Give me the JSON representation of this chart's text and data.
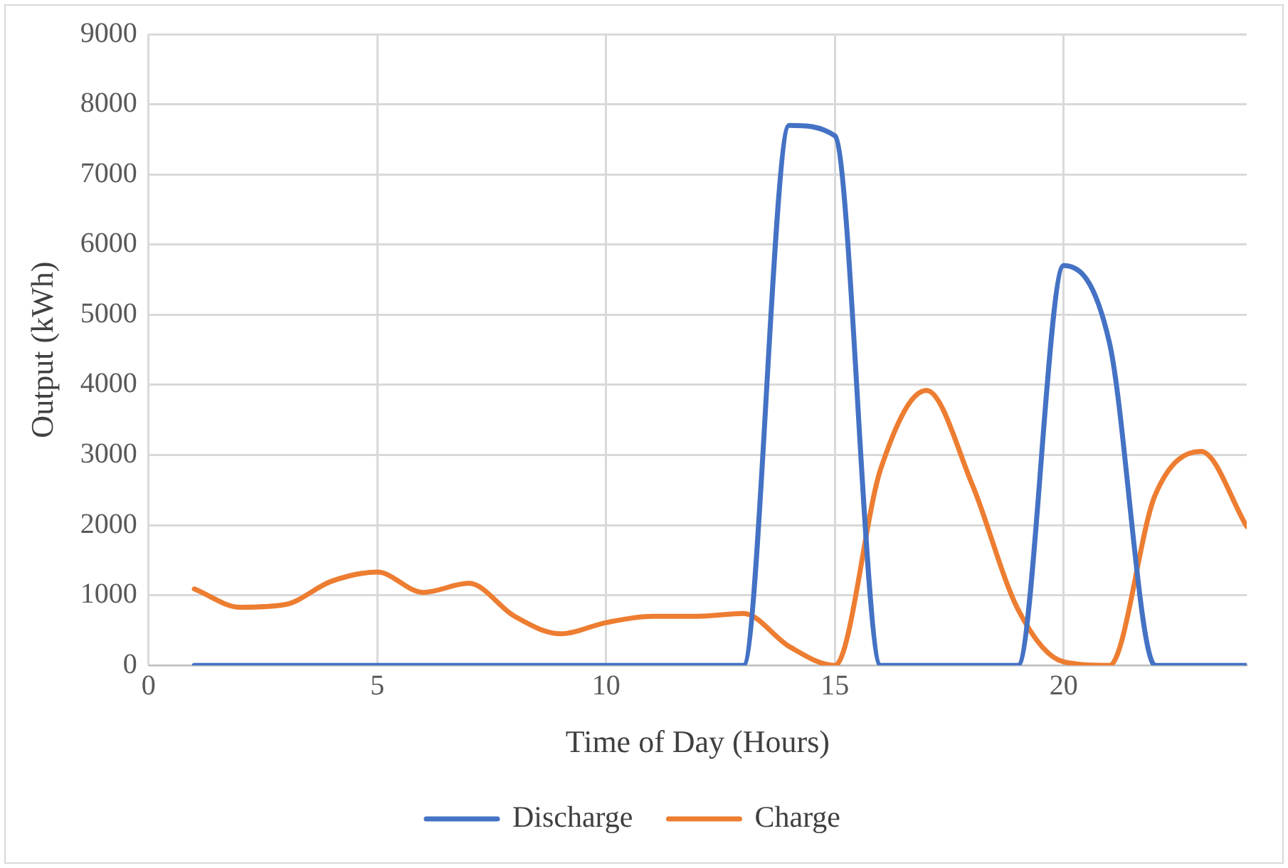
{
  "chart_data": {
    "type": "line",
    "xlabel": "Time of Day (Hours)",
    "ylabel": "Output (kWh)",
    "x": [
      1,
      2,
      3,
      4,
      5,
      6,
      7,
      8,
      9,
      10,
      11,
      12,
      13,
      14,
      15,
      16,
      17,
      18,
      19,
      20,
      21,
      22,
      23,
      24
    ],
    "series": [
      {
        "name": "Discharge",
        "color": "#4472c4",
        "values": [
          0,
          0,
          0,
          0,
          0,
          0,
          0,
          0,
          0,
          0,
          0,
          0,
          0,
          7700,
          7550,
          0,
          0,
          0,
          0,
          5700,
          4600,
          0,
          0,
          0
        ]
      },
      {
        "name": "Charge",
        "color": "#ed7d31",
        "values": [
          1090,
          830,
          870,
          1200,
          1330,
          1040,
          1170,
          700,
          450,
          610,
          700,
          700,
          740,
          270,
          0,
          2800,
          3920,
          2580,
          800,
          50,
          0,
          2430,
          3050,
          1980
        ]
      }
    ],
    "xlim": [
      0,
      24
    ],
    "xticks": [
      0,
      5,
      10,
      15,
      20
    ],
    "ylim": [
      0,
      9000
    ],
    "yticks": [
      0,
      1000,
      2000,
      3000,
      4000,
      5000,
      6000,
      7000,
      8000,
      9000
    ],
    "grid": true,
    "legend": "bottom",
    "marker": "none",
    "line_style": "solid"
  }
}
